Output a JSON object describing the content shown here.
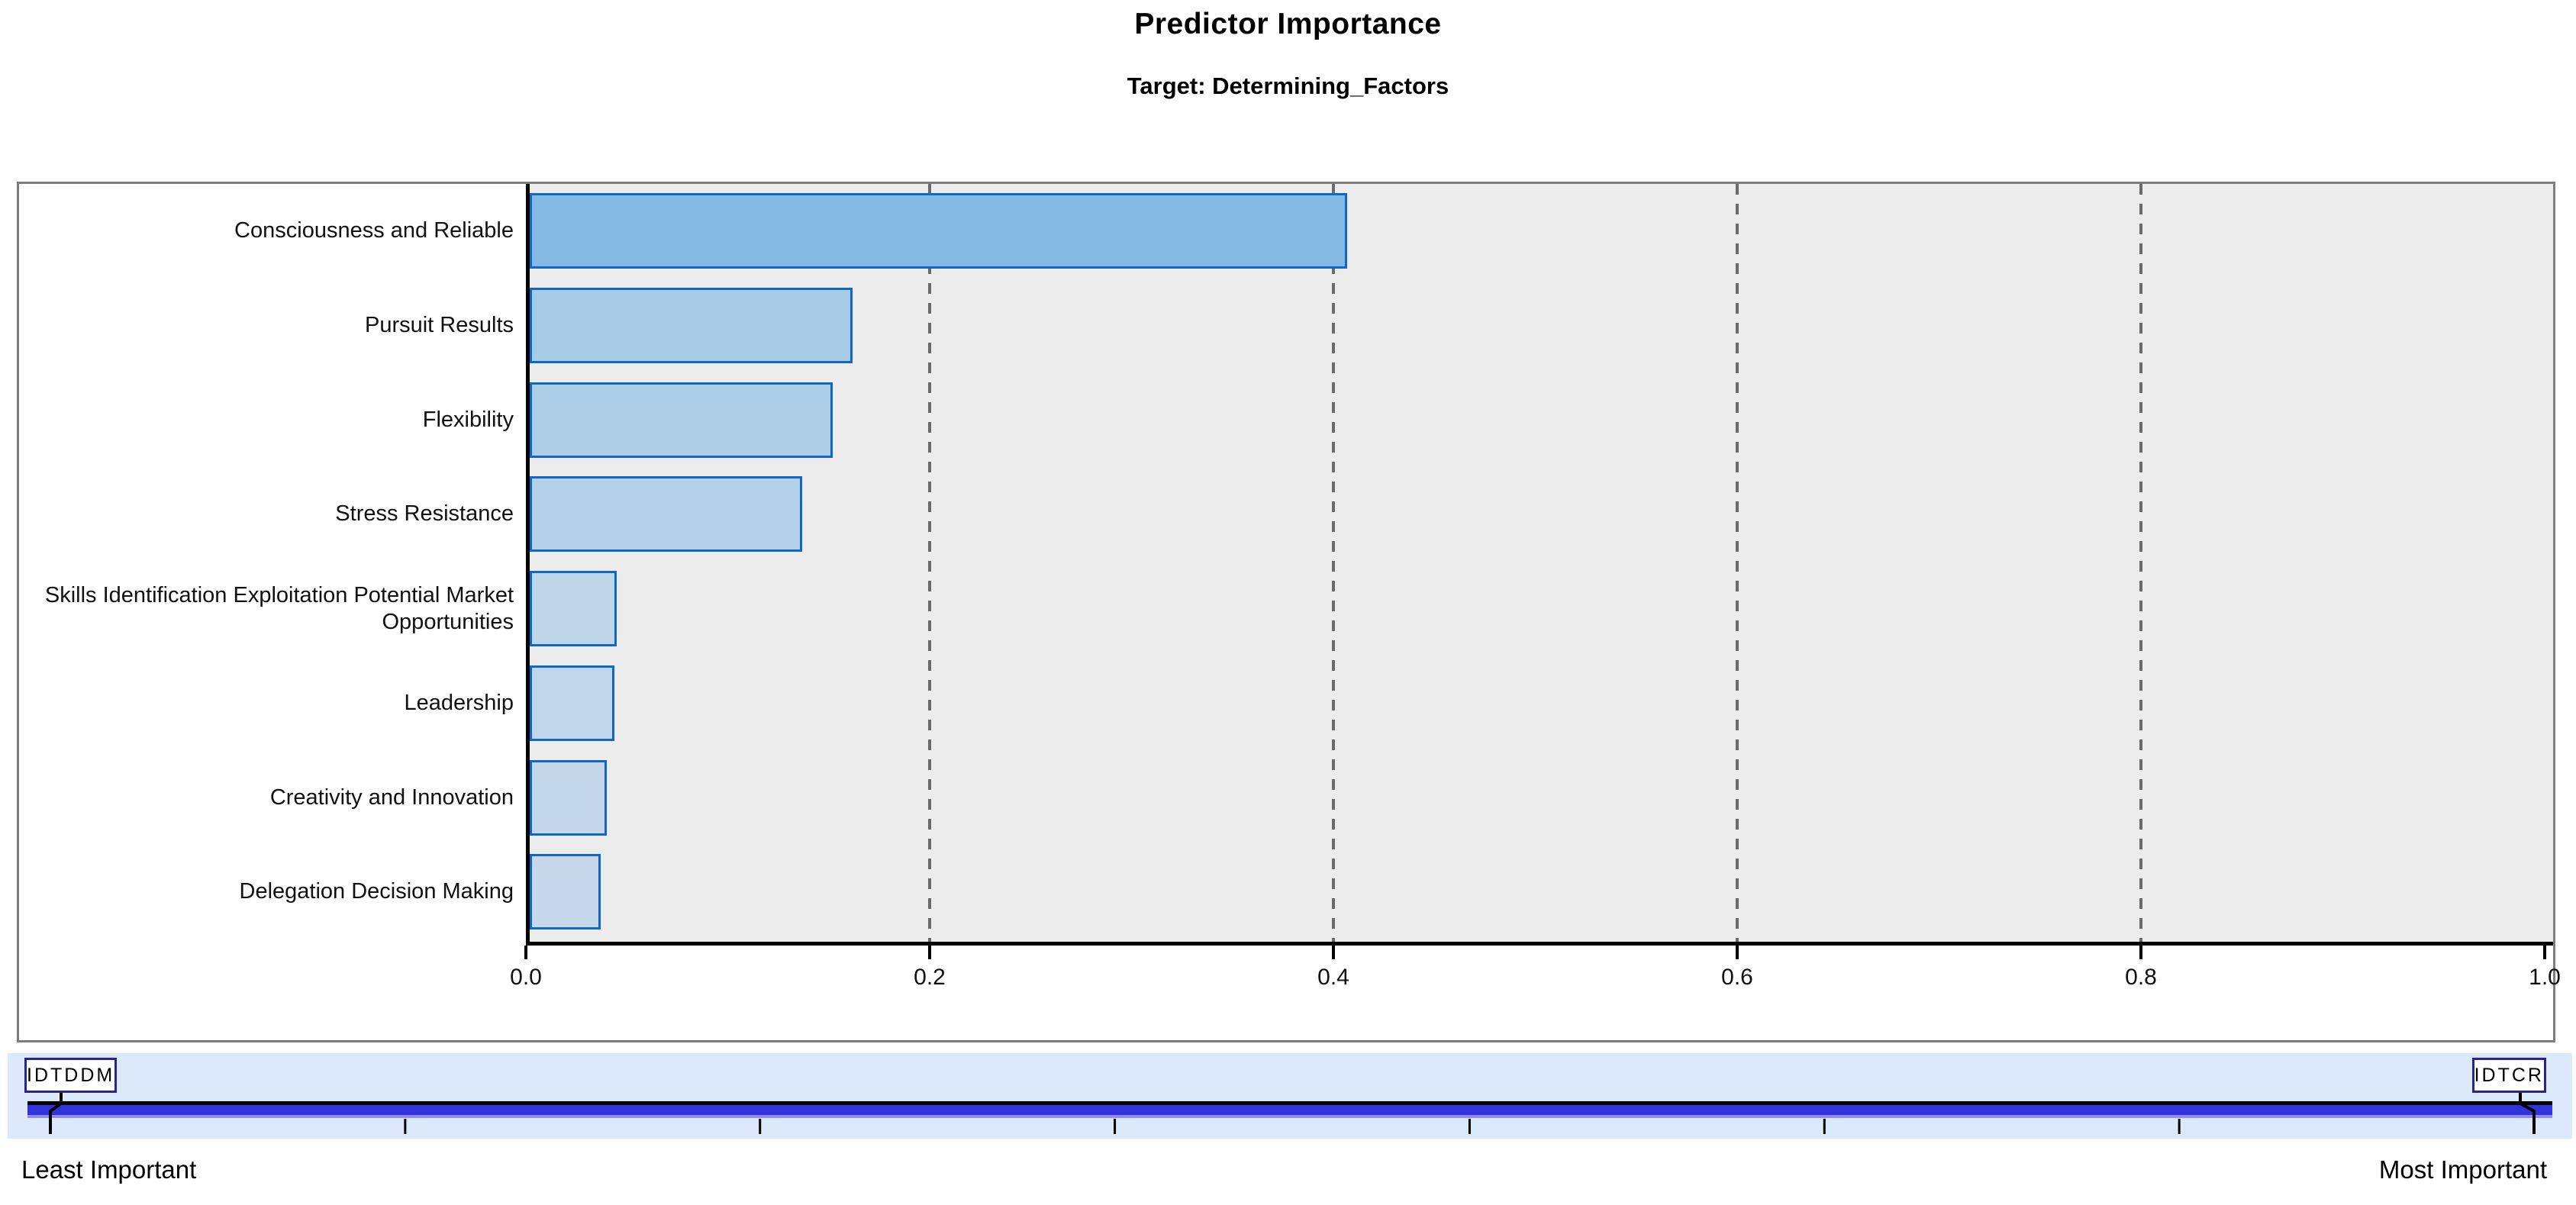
{
  "header": {
    "title": "Predictor Importance",
    "subtitle": "Target: Determining_Factors"
  },
  "chart_data": {
    "type": "bar",
    "orientation": "horizontal",
    "title": "Predictor Importance",
    "subtitle": "Target: Determining_Factors",
    "categories": [
      "Consciousness and Reliable",
      "Pursuit Results",
      "Flexibility",
      "Stress Resistance",
      "Skills Identification Exploitation Potential Market Opportunities",
      "Leadership",
      "Creativity and Innovation",
      "Delegation Decision Making"
    ],
    "values": [
      0.405,
      0.16,
      0.15,
      0.135,
      0.043,
      0.042,
      0.038,
      0.035
    ],
    "xlim": [
      0.0,
      1.0
    ],
    "x_ticks": [
      "0.0",
      "0.2",
      "0.4",
      "0.6",
      "0.8",
      "1.0"
    ],
    "x_tick_values": [
      0.0,
      0.2,
      0.4,
      0.6,
      0.8,
      1.0
    ],
    "grid": "dashed-vertical",
    "legend": "none",
    "plot_background": "#ececec",
    "gridline_color": "#6b6b6b",
    "bar_border_color": "#0f68c8",
    "bar_colors": [
      "#84b9e3",
      "#a8cbe7",
      "#aecee8",
      "#b4d1e9",
      "#bfd5e8",
      "#c2d6e9",
      "#c4d7e9",
      "#c6d8ea"
    ]
  },
  "slider": {
    "left_box_label": "IDTDDM",
    "right_box_label": "IDTCR",
    "left_caption": "Least Important",
    "right_caption": "Most Important",
    "panel_color": "#dce9fa",
    "track_color": "#3232de",
    "track_edge_color": "#8c8cf2",
    "tick_count": 8
  }
}
